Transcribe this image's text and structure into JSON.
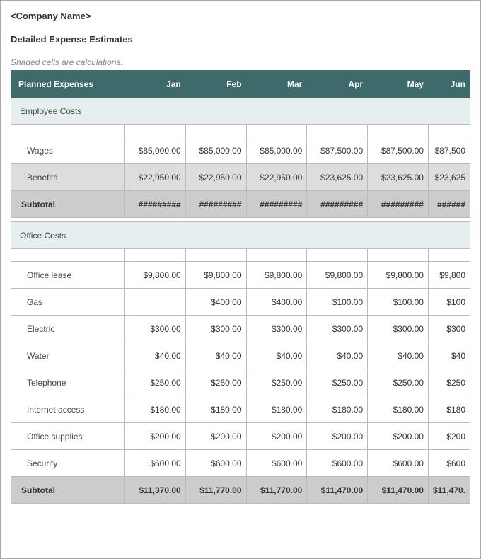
{
  "company_name": "<Company Name>",
  "title": "Detailed Expense Estimates",
  "note": "Shaded cells are calculations.",
  "months": [
    "Jan",
    "Feb",
    "Mar",
    "Apr",
    "May",
    "Jun"
  ],
  "header_label": "Planned Expenses",
  "colors": {
    "header_bg": "#3f6a6b",
    "header_text": "#ffffff",
    "section_bg": "#e6eeef",
    "shaded_bg": "#dddddd",
    "subtotal_bg": "#cccccc",
    "border": "#bbbbbb",
    "text": "#333333",
    "note_text": "#888888"
  },
  "sections": [
    {
      "name": "Employee Costs",
      "rows": [
        {
          "label": "Wages",
          "values": [
            "$85,000.00",
            "$85,000.00",
            "$85,000.00",
            "$87,500.00",
            "$87,500.00",
            "$87,500"
          ],
          "shaded": false
        },
        {
          "label": "Benefits",
          "values": [
            "$22,950.00",
            "$22,950.00",
            "$22,950.00",
            "$23,625.00",
            "$23,625.00",
            "$23,625"
          ],
          "shaded": true
        }
      ],
      "subtotal": {
        "label": "Subtotal",
        "values": [
          "#########",
          "#########",
          "#########",
          "#########",
          "#########",
          "######"
        ]
      }
    },
    {
      "name": "Office Costs",
      "rows": [
        {
          "label": "Office lease",
          "values": [
            "$9,800.00",
            "$9,800.00",
            "$9,800.00",
            "$9,800.00",
            "$9,800.00",
            "$9,800"
          ],
          "shaded": false
        },
        {
          "label": "Gas",
          "values": [
            "",
            "$400.00",
            "$400.00",
            "$100.00",
            "$100.00",
            "$100"
          ],
          "shaded": false
        },
        {
          "label": "Electric",
          "values": [
            "$300.00",
            "$300.00",
            "$300.00",
            "$300.00",
            "$300.00",
            "$300"
          ],
          "shaded": false
        },
        {
          "label": "Water",
          "values": [
            "$40.00",
            "$40.00",
            "$40.00",
            "$40.00",
            "$40.00",
            "$40"
          ],
          "shaded": false
        },
        {
          "label": "Telephone",
          "values": [
            "$250.00",
            "$250.00",
            "$250.00",
            "$250.00",
            "$250.00",
            "$250"
          ],
          "shaded": false
        },
        {
          "label": "Internet access",
          "values": [
            "$180.00",
            "$180.00",
            "$180.00",
            "$180.00",
            "$180.00",
            "$180"
          ],
          "shaded": false
        },
        {
          "label": "Office supplies",
          "values": [
            "$200.00",
            "$200.00",
            "$200.00",
            "$200.00",
            "$200.00",
            "$200"
          ],
          "shaded": false
        },
        {
          "label": "Security",
          "values": [
            "$600.00",
            "$600.00",
            "$600.00",
            "$600.00",
            "$600.00",
            "$600"
          ],
          "shaded": false
        }
      ],
      "subtotal": {
        "label": "Subtotal",
        "values": [
          "$11,370.00",
          "$11,770.00",
          "$11,770.00",
          "$11,470.00",
          "$11,470.00",
          "$11,470."
        ]
      }
    }
  ]
}
